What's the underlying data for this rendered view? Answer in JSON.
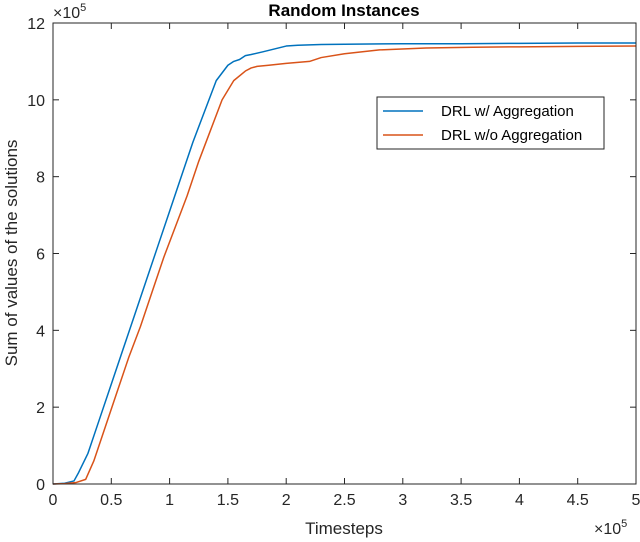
{
  "chart_data": {
    "type": "line",
    "title": "Random Instances",
    "xlabel": "Timesteps",
    "ylabel": "Sum of values of the solutions",
    "x_exponent_label": "×10",
    "x_exponent_power": "5",
    "y_exponent_label": "×10",
    "y_exponent_power": "5",
    "xlim": [
      0,
      500000
    ],
    "ylim": [
      0,
      1200000
    ],
    "x_ticks": [
      0,
      50000,
      100000,
      150000,
      200000,
      250000,
      300000,
      350000,
      400000,
      450000,
      500000
    ],
    "x_tick_labels": [
      "0",
      "0.5",
      "1",
      "1.5",
      "2",
      "2.5",
      "3",
      "3.5",
      "4",
      "4.5",
      "5"
    ],
    "y_ticks": [
      0,
      200000,
      400000,
      600000,
      800000,
      1000000,
      1200000
    ],
    "y_tick_labels": [
      "0",
      "2",
      "4",
      "6",
      "8",
      "10",
      "12"
    ],
    "grid": false,
    "legend_position": "top-right",
    "series": [
      {
        "name": "DRL w/ Aggregation",
        "color": "#0072BD",
        "x": [
          0,
          10000,
          18000,
          22000,
          30000,
          40000,
          50000,
          60000,
          70000,
          80000,
          90000,
          100000,
          110000,
          120000,
          130000,
          140000,
          150000,
          155000,
          160000,
          165000,
          170000,
          180000,
          200000,
          210000,
          230000,
          260000,
          300000,
          350000,
          400000,
          450000,
          500000
        ],
        "y": [
          0,
          2000,
          8000,
          30000,
          80000,
          170000,
          260000,
          350000,
          440000,
          530000,
          620000,
          710000,
          800000,
          890000,
          970000,
          1050000,
          1090000,
          1100000,
          1105000,
          1115000,
          1118000,
          1125000,
          1140000,
          1142000,
          1144000,
          1145000,
          1146000,
          1146000,
          1147000,
          1148000,
          1148000
        ]
      },
      {
        "name": "DRL w/o Aggregation",
        "color": "#D95319",
        "x": [
          0,
          10000,
          20000,
          28000,
          35000,
          45000,
          55000,
          65000,
          75000,
          85000,
          95000,
          105000,
          115000,
          125000,
          135000,
          145000,
          155000,
          165000,
          170000,
          175000,
          185000,
          200000,
          220000,
          230000,
          250000,
          280000,
          320000,
          360000,
          400000,
          450000,
          500000
        ],
        "y": [
          0,
          1000,
          4000,
          12000,
          60000,
          150000,
          240000,
          330000,
          410000,
          500000,
          590000,
          670000,
          750000,
          840000,
          920000,
          1000000,
          1050000,
          1075000,
          1083000,
          1087000,
          1090000,
          1095000,
          1100000,
          1110000,
          1120000,
          1130000,
          1135000,
          1137000,
          1138000,
          1139000,
          1140000
        ]
      }
    ]
  }
}
